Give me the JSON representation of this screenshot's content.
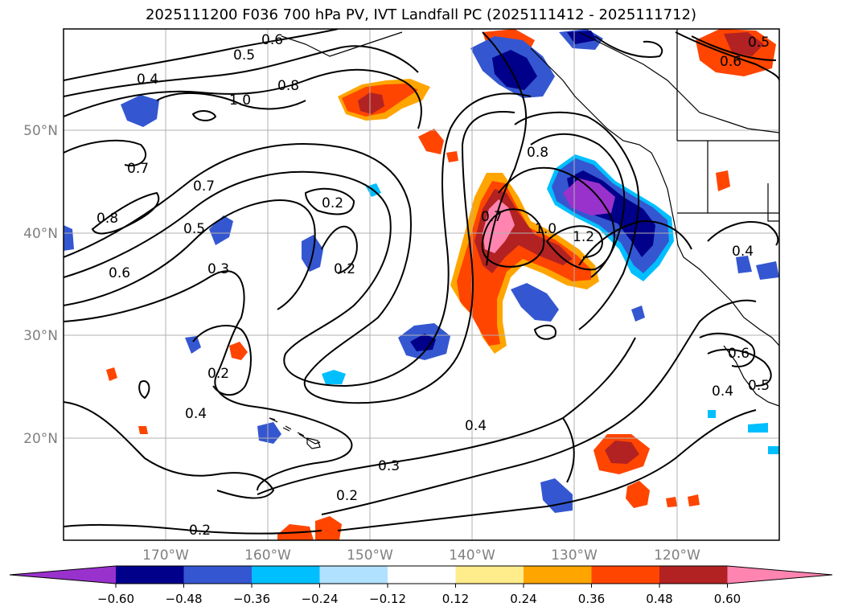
{
  "title": "2025111200 F036 700 hPa PV, IVT Landfall PC (2025111412 - 2025111712)",
  "map": {
    "lon_labels": [
      "170°W",
      "160°W",
      "150°W",
      "140°W",
      "130°W",
      "120°W"
    ],
    "lat_labels": [
      "50°N",
      "40°N",
      "30°N",
      "20°N"
    ],
    "contour_labels": [
      "0.5",
      "0.4",
      "0.6",
      "0.8",
      "1.0",
      "0.7",
      "0.7",
      "0.8",
      "0.5",
      "0.6",
      "0.2",
      "0.3",
      "0.2",
      "0.2",
      "0.4",
      "0.7",
      "0.8",
      "1.0",
      "1.2",
      "0.4",
      "0.3",
      "0.2",
      "0.2",
      "0.4",
      "0.4",
      "0.5",
      "0.6",
      "0.6",
      "0.5"
    ],
    "grid_color": "#b0b0b0",
    "tick_color": "#7f7f7f"
  },
  "colorbar": {
    "ticks": [
      "−0.60",
      "−0.48",
      "−0.36",
      "−0.24",
      "−0.12",
      "0.12",
      "0.24",
      "0.36",
      "0.48",
      "0.60"
    ],
    "colors": [
      "#9932cc",
      "#00008b",
      "#3457d1",
      "#00bfff",
      "#b0e2ff",
      "#ffffff",
      "#ffec8b",
      "#ffa500",
      "#ff4500",
      "#b22222",
      "#ff85b0"
    ]
  }
}
